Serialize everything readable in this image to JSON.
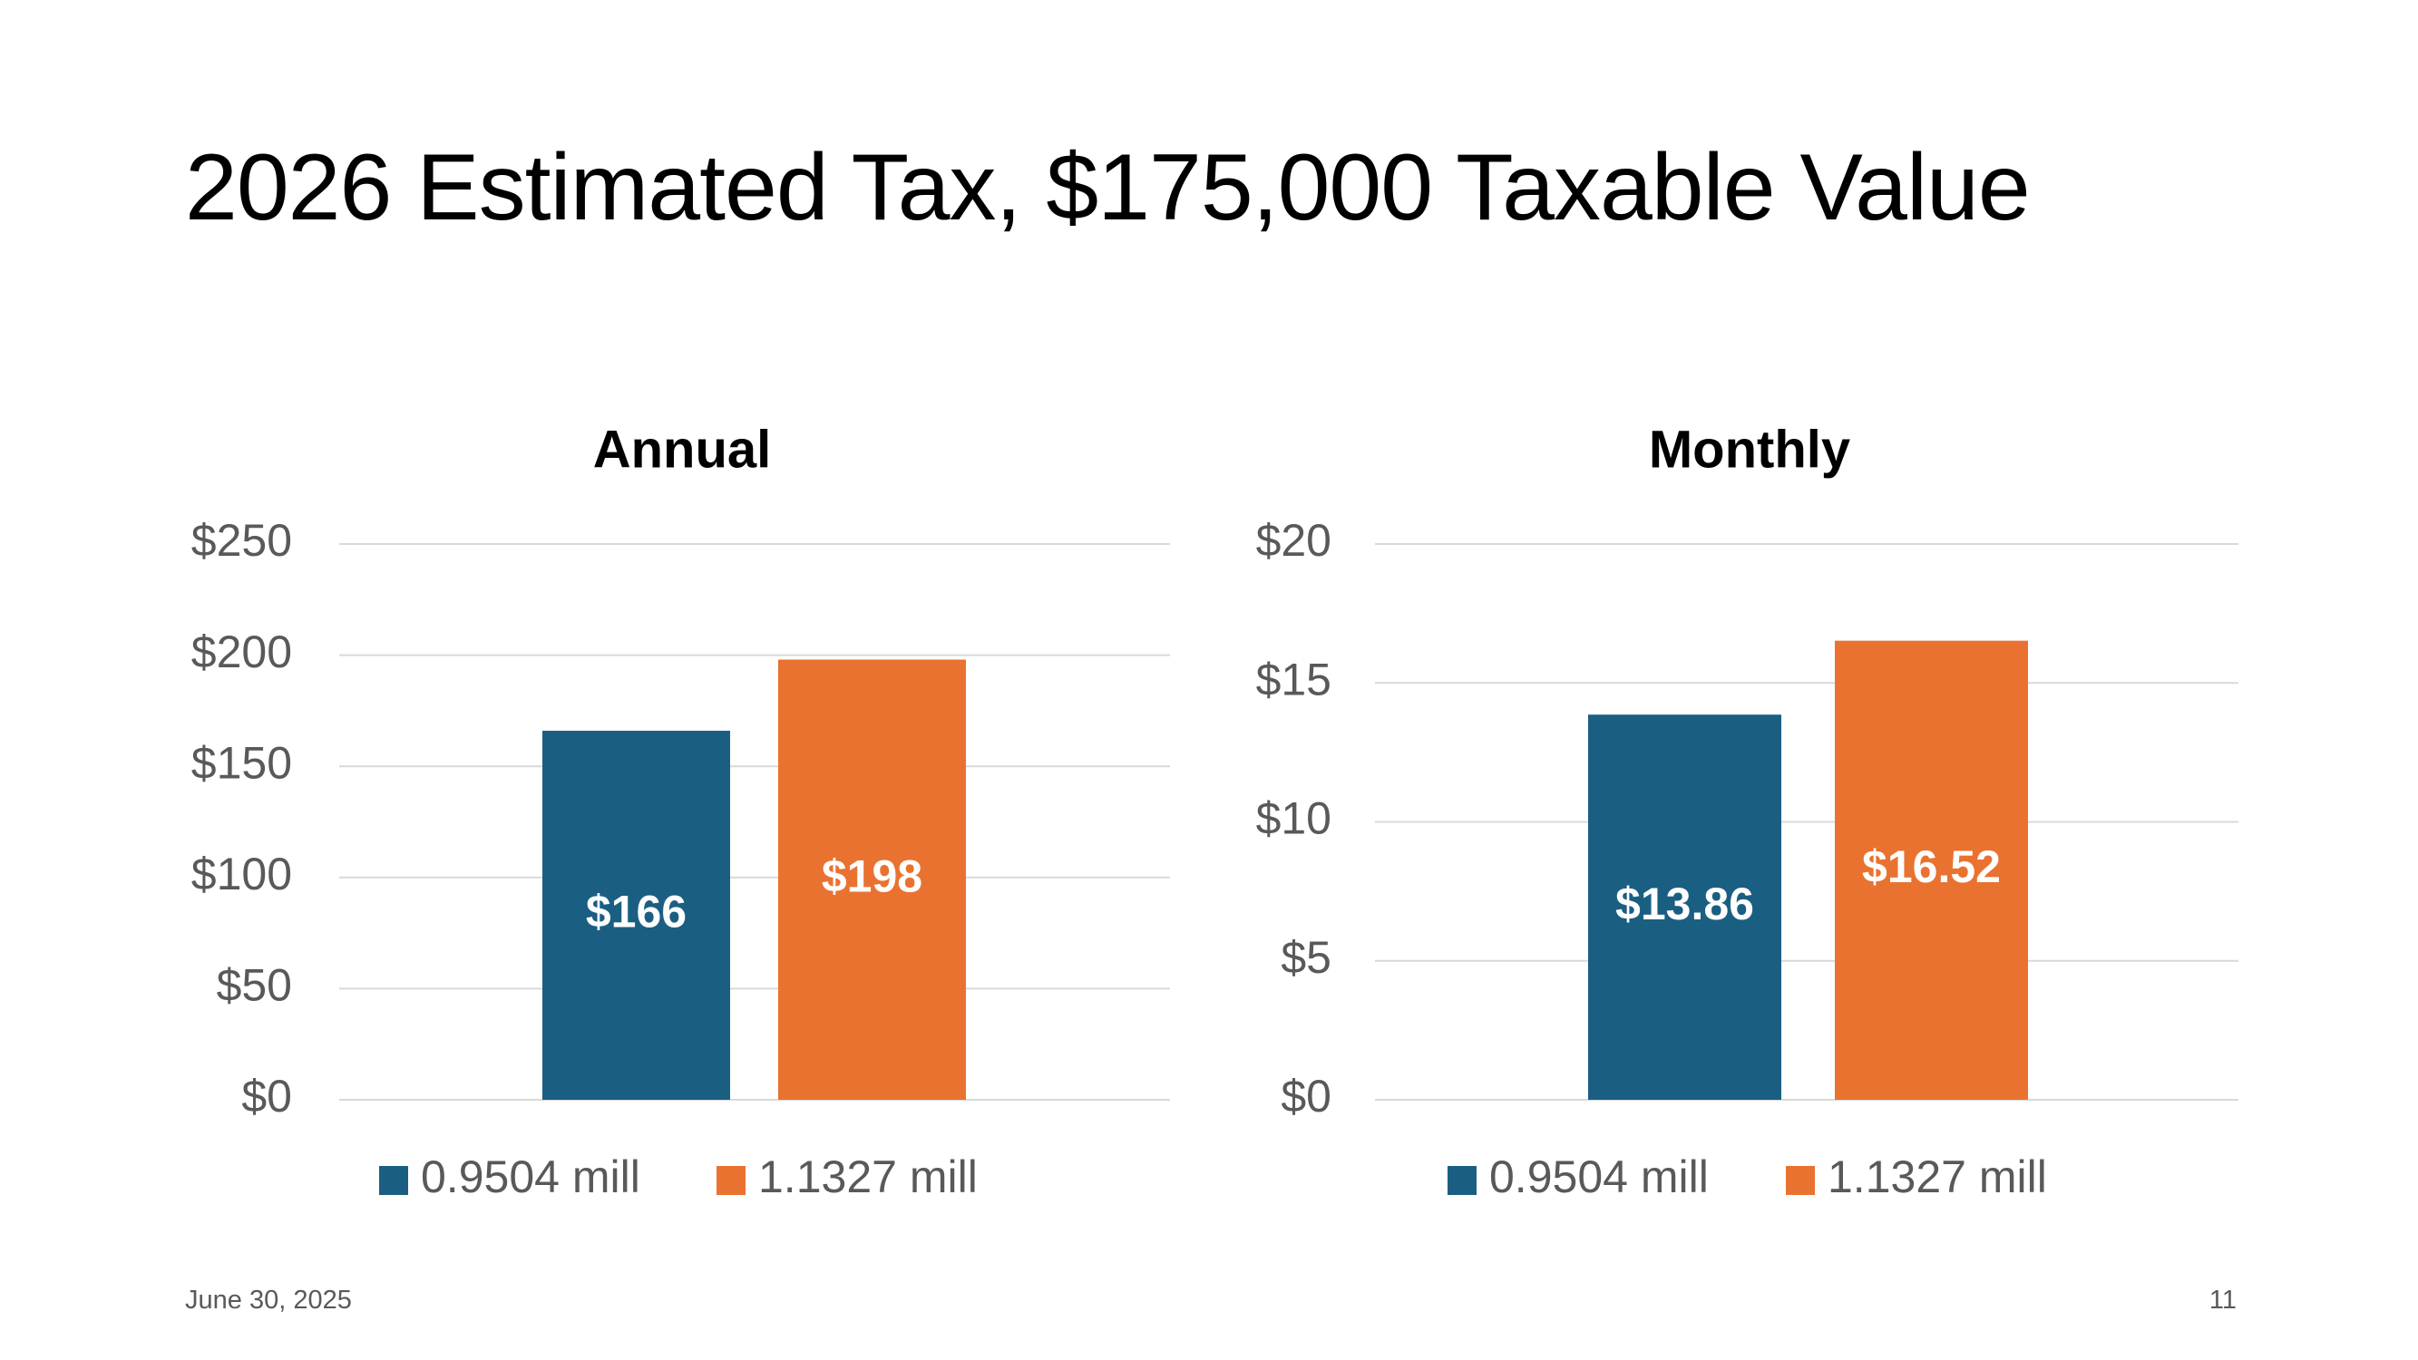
{
  "slide": {
    "title": "2026 Estimated Tax, $175,000 Taxable Value",
    "date": "June 30, 2025",
    "page_number": "11"
  },
  "colors": {
    "series1": "#1a5f82",
    "series2": "#ea7231",
    "gridline": "#d9d9d9",
    "axis_text": "#595959"
  },
  "chart_data": [
    {
      "type": "bar",
      "title": "Annual",
      "categories": [
        ""
      ],
      "series": [
        {
          "name": "0.9504 mill",
          "values": [
            166
          ],
          "labels": [
            "$166"
          ]
        },
        {
          "name": "1.1327 mill",
          "values": [
            198
          ],
          "labels": [
            "$198"
          ]
        }
      ],
      "ylim": [
        0,
        250
      ],
      "yticks": [
        0,
        50,
        100,
        150,
        200,
        250
      ],
      "ytick_labels": [
        "$0",
        "$50",
        "$100",
        "$150",
        "$200",
        "$250"
      ],
      "xlabel": "",
      "ylabel": "",
      "grid": true,
      "legend": "bottom"
    },
    {
      "type": "bar",
      "title": "Monthly",
      "categories": [
        ""
      ],
      "series": [
        {
          "name": "0.9504 mill",
          "values": [
            13.86
          ],
          "labels": [
            "$13.86"
          ]
        },
        {
          "name": "1.1327 mill",
          "values": [
            16.52
          ],
          "labels": [
            "$16.52"
          ]
        }
      ],
      "ylim": [
        0,
        20
      ],
      "yticks": [
        0,
        5,
        10,
        15,
        20
      ],
      "ytick_labels": [
        "$0",
        "$5",
        "$10",
        "$15",
        "$20"
      ],
      "xlabel": "",
      "ylabel": "",
      "grid": true,
      "legend": "bottom"
    }
  ]
}
